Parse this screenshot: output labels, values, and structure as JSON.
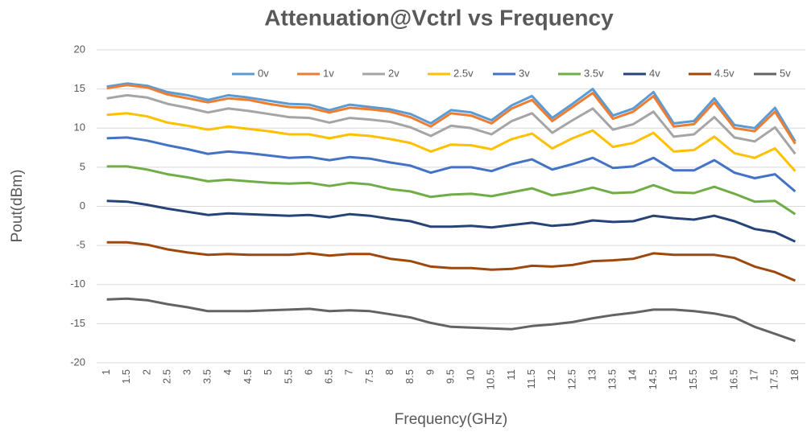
{
  "chart_data": {
    "type": "line",
    "title": "Attenuation@Vctrl vs Frequency",
    "x_label": "Frequency(GHz)",
    "y_label": "Pout(dBm)",
    "categories": [
      "1",
      "1.5",
      "2",
      "2.5",
      "3",
      "3.5",
      "4",
      "4.5",
      "5",
      "5.5",
      "6",
      "6.5",
      "7",
      "7.5",
      "8",
      "8.5",
      "9",
      "9.5",
      "10",
      "10.5",
      "11",
      "11.5",
      "12",
      "12.5",
      "13",
      "13.5",
      "14",
      "14.5",
      "15",
      "15.5",
      "16",
      "16.5",
      "17",
      "17.5",
      "18"
    ],
    "ylim": [
      -20,
      20
    ],
    "yticks": [
      -20,
      -15,
      -10,
      -5,
      0,
      5,
      10,
      15,
      20
    ],
    "grid": true,
    "legend": "top",
    "series": [
      {
        "name": "0v",
        "color": "#5b9bd5",
        "values": [
          15.3,
          15.7,
          15.4,
          14.6,
          14.2,
          13.6,
          14.2,
          13.9,
          13.5,
          13.1,
          13.0,
          12.3,
          13.0,
          12.7,
          12.4,
          11.8,
          10.6,
          12.3,
          12.0,
          11.0,
          12.9,
          14.1,
          11.3,
          13.1,
          15.0,
          11.6,
          12.5,
          14.6,
          10.6,
          10.9,
          13.8,
          10.4,
          10.0,
          12.6,
          8.3
        ]
      },
      {
        "name": "1v",
        "color": "#ed7d31",
        "values": [
          15.1,
          15.5,
          15.2,
          14.3,
          13.8,
          13.3,
          13.8,
          13.6,
          13.1,
          12.7,
          12.6,
          12.0,
          12.6,
          12.4,
          12.1,
          11.4,
          10.2,
          11.9,
          11.6,
          10.6,
          12.5,
          13.6,
          10.9,
          12.7,
          14.5,
          11.2,
          12.1,
          14.1,
          10.2,
          10.5,
          13.3,
          10.0,
          9.6,
          12.1,
          8.0
        ]
      },
      {
        "name": "2v",
        "color": "#a5a5a5",
        "values": [
          13.8,
          14.2,
          13.9,
          13.1,
          12.6,
          12.0,
          12.5,
          12.2,
          11.8,
          11.4,
          11.3,
          10.7,
          11.3,
          11.1,
          10.8,
          10.1,
          9.0,
          10.3,
          10.0,
          9.2,
          10.9,
          11.9,
          9.4,
          11.0,
          12.5,
          9.8,
          10.5,
          12.1,
          8.9,
          9.2,
          11.4,
          8.8,
          8.3,
          10.1,
          6.7
        ]
      },
      {
        "name": "2.5v",
        "color": "#ffc000",
        "values": [
          11.7,
          11.9,
          11.5,
          10.7,
          10.3,
          9.8,
          10.2,
          9.9,
          9.6,
          9.2,
          9.2,
          8.7,
          9.2,
          9.0,
          8.6,
          8.1,
          7.0,
          7.9,
          7.8,
          7.3,
          8.6,
          9.3,
          7.4,
          8.7,
          9.7,
          7.6,
          8.1,
          9.4,
          7.0,
          7.2,
          8.9,
          6.8,
          6.2,
          7.4,
          4.5
        ]
      },
      {
        "name": "3v",
        "color": "#4472c4",
        "values": [
          8.7,
          8.8,
          8.4,
          7.8,
          7.3,
          6.7,
          7.0,
          6.8,
          6.5,
          6.2,
          6.3,
          5.9,
          6.3,
          6.1,
          5.6,
          5.2,
          4.3,
          5.0,
          5.0,
          4.5,
          5.4,
          6.0,
          4.7,
          5.4,
          6.2,
          4.9,
          5.1,
          6.2,
          4.6,
          4.6,
          5.9,
          4.3,
          3.6,
          4.1,
          1.9
        ]
      },
      {
        "name": "3.5v",
        "color": "#70ad47",
        "values": [
          5.1,
          5.1,
          4.7,
          4.1,
          3.7,
          3.2,
          3.4,
          3.2,
          3.0,
          2.9,
          3.0,
          2.6,
          3.0,
          2.8,
          2.2,
          1.9,
          1.2,
          1.5,
          1.6,
          1.3,
          1.8,
          2.3,
          1.4,
          1.8,
          2.4,
          1.7,
          1.8,
          2.7,
          1.8,
          1.7,
          2.5,
          1.6,
          0.6,
          0.7,
          -1.0
        ]
      },
      {
        "name": "4v",
        "color": "#264478",
        "values": [
          0.7,
          0.6,
          0.2,
          -0.3,
          -0.7,
          -1.1,
          -0.9,
          -1.0,
          -1.1,
          -1.2,
          -1.1,
          -1.4,
          -1.0,
          -1.2,
          -1.6,
          -1.9,
          -2.6,
          -2.6,
          -2.5,
          -2.7,
          -2.4,
          -2.1,
          -2.5,
          -2.3,
          -1.8,
          -2.0,
          -1.9,
          -1.2,
          -1.5,
          -1.7,
          -1.2,
          -1.9,
          -2.9,
          -3.3,
          -4.5
        ]
      },
      {
        "name": "4.5v",
        "color": "#9e480e",
        "values": [
          -4.6,
          -4.6,
          -4.9,
          -5.5,
          -5.9,
          -6.2,
          -6.1,
          -6.2,
          -6.2,
          -6.2,
          -6.0,
          -6.3,
          -6.1,
          -6.1,
          -6.7,
          -7.0,
          -7.7,
          -7.9,
          -7.9,
          -8.1,
          -8.0,
          -7.6,
          -7.7,
          -7.5,
          -7.0,
          -6.9,
          -6.7,
          -6.0,
          -6.2,
          -6.2,
          -6.2,
          -6.6,
          -7.7,
          -8.4,
          -9.5
        ]
      },
      {
        "name": "5v",
        "color": "#636363",
        "values": [
          -11.9,
          -11.8,
          -12.0,
          -12.5,
          -12.9,
          -13.4,
          -13.4,
          -13.4,
          -13.3,
          -13.2,
          -13.1,
          -13.4,
          -13.3,
          -13.4,
          -13.8,
          -14.2,
          -14.9,
          -15.4,
          -15.5,
          -15.6,
          -15.7,
          -15.3,
          -15.1,
          -14.8,
          -14.3,
          -13.9,
          -13.6,
          -13.2,
          -13.2,
          -13.4,
          -13.7,
          -14.2,
          -15.4,
          -16.3,
          -17.2
        ]
      }
    ]
  }
}
